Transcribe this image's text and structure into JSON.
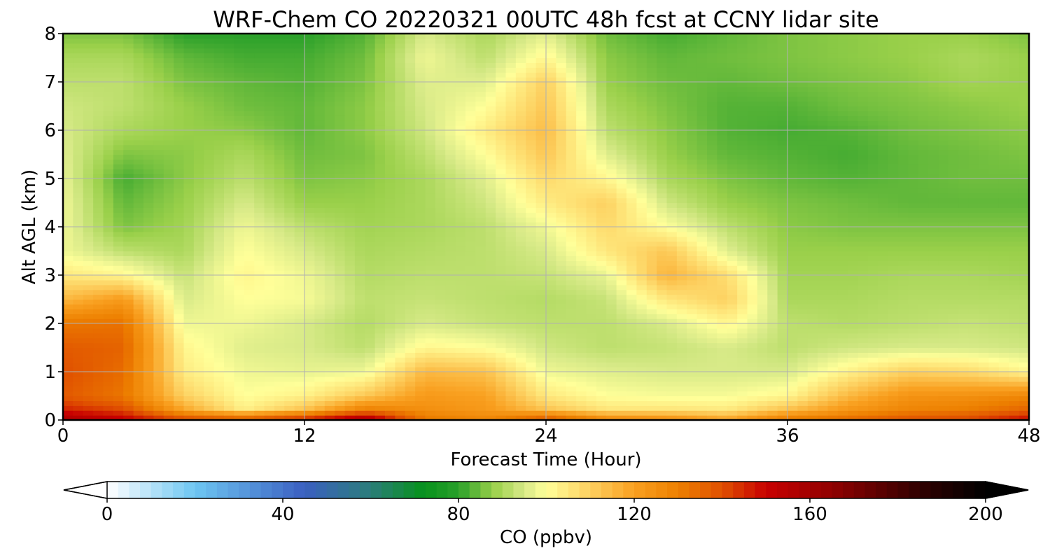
{
  "chart_data": {
    "type": "heatmap",
    "subtype": "filled-contour",
    "title": "WRF-Chem CO  20220321 00UTC 48h fcst at CCNY lidar site",
    "xlabel": "Forecast Time (Hour)",
    "ylabel": "Alt AGL (km)",
    "xlim": [
      0,
      48
    ],
    "ylim": [
      0,
      8
    ],
    "xticks": [
      0,
      12,
      24,
      36,
      48
    ],
    "yticks": [
      0,
      1,
      2,
      3,
      4,
      5,
      6,
      7,
      8
    ],
    "grid": true,
    "x": [
      0,
      3,
      6,
      9,
      12,
      15,
      18,
      21,
      24,
      27,
      30,
      33,
      36,
      39,
      42,
      45,
      48
    ],
    "y": [
      0.0,
      0.25,
      0.5,
      1.0,
      1.5,
      2.0,
      2.5,
      3.0,
      3.5,
      4.0,
      4.5,
      5.0,
      5.5,
      6.0,
      6.5,
      7.0,
      7.5,
      8.0
    ],
    "z_units": "ppbv",
    "z": [
      [
        158,
        152,
        142,
        140,
        148,
        160,
        132,
        128,
        140,
        128,
        126,
        120,
        132,
        135,
        140,
        142,
        150
      ],
      [
        145,
        140,
        118,
        103,
        112,
        128,
        125,
        122,
        112,
        105,
        105,
        104,
        112,
        122,
        128,
        130,
        135
      ],
      [
        138,
        132,
        110,
        100,
        103,
        112,
        122,
        120,
        105,
        100,
        99,
        99,
        102,
        115,
        124,
        125,
        128
      ],
      [
        140,
        134,
        104,
        98,
        97,
        98,
        115,
        113,
        98,
        96,
        95,
        95,
        95,
        103,
        110,
        108,
        102
      ],
      [
        138,
        136,
        102,
        96,
        95,
        92,
        102,
        100,
        94,
        92,
        93,
        95,
        92,
        94,
        95,
        95,
        94
      ],
      [
        132,
        133,
        98,
        98,
        95,
        91,
        95,
        93,
        92,
        92,
        95,
        102,
        92,
        91,
        92,
        93,
        92
      ],
      [
        115,
        122,
        95,
        100,
        99,
        92,
        93,
        92,
        91,
        93,
        105,
        110,
        90,
        90,
        91,
        91,
        91
      ],
      [
        105,
        102,
        93,
        102,
        98,
        91,
        92,
        92,
        93,
        97,
        116,
        107,
        89,
        89,
        90,
        90,
        89
      ],
      [
        98,
        92,
        90,
        100,
        95,
        90,
        91,
        92,
        95,
        105,
        112,
        96,
        88,
        88,
        88,
        88,
        88
      ],
      [
        98,
        86,
        89,
        98,
        92,
        89,
        90,
        92,
        98,
        108,
        100,
        92,
        87,
        86,
        86,
        86,
        86
      ],
      [
        98,
        84,
        88,
        95,
        88,
        88,
        90,
        94,
        104,
        110,
        94,
        88,
        86,
        85,
        84,
        84,
        84
      ],
      [
        97,
        82,
        87,
        92,
        86,
        87,
        90,
        96,
        108,
        102,
        90,
        86,
        84,
        83,
        84,
        85,
        85
      ],
      [
        96,
        86,
        87,
        90,
        85,
        86,
        92,
        100,
        112,
        96,
        88,
        84,
        83,
        82,
        84,
        85,
        86
      ],
      [
        95,
        90,
        88,
        87,
        84,
        87,
        94,
        104,
        114,
        92,
        87,
        83,
        82,
        83,
        85,
        86,
        87
      ],
      [
        94,
        92,
        88,
        85,
        84,
        87,
        95,
        100,
        112,
        90,
        86,
        83,
        83,
        85,
        86,
        87,
        88
      ],
      [
        92,
        92,
        86,
        84,
        83,
        86,
        96,
        96,
        110,
        88,
        85,
        84,
        85,
        86,
        87,
        89,
        88
      ],
      [
        90,
        90,
        84,
        82,
        82,
        85,
        98,
        92,
        102,
        87,
        84,
        85,
        86,
        87,
        88,
        90,
        88
      ],
      [
        86,
        86,
        80,
        80,
        80,
        83,
        95,
        90,
        96,
        85,
        82,
        84,
        86,
        87,
        88,
        88,
        86
      ]
    ],
    "colorbar": {
      "label": "CO  (ppbv)",
      "min": 0,
      "max": 200,
      "ticks": [
        0,
        40,
        80,
        120,
        160,
        200
      ],
      "extend": "both",
      "stops": [
        {
          "v": 0,
          "c": "#ffffff"
        },
        {
          "v": 20,
          "c": "#6ec6f2"
        },
        {
          "v": 45,
          "c": "#3a5fc0"
        },
        {
          "v": 60,
          "c": "#2b7d7a"
        },
        {
          "v": 72,
          "c": "#06921c"
        },
        {
          "v": 80,
          "c": "#2aa02a"
        },
        {
          "v": 88,
          "c": "#9ad04a"
        },
        {
          "v": 95,
          "c": "#d8ea88"
        },
        {
          "v": 100,
          "c": "#ffff99"
        },
        {
          "v": 110,
          "c": "#fdd060"
        },
        {
          "v": 120,
          "c": "#f9a020"
        },
        {
          "v": 130,
          "c": "#ed8000"
        },
        {
          "v": 140,
          "c": "#e05000"
        },
        {
          "v": 150,
          "c": "#c80000"
        },
        {
          "v": 165,
          "c": "#900000"
        },
        {
          "v": 185,
          "c": "#300000"
        },
        {
          "v": 200,
          "c": "#000000"
        }
      ]
    }
  }
}
